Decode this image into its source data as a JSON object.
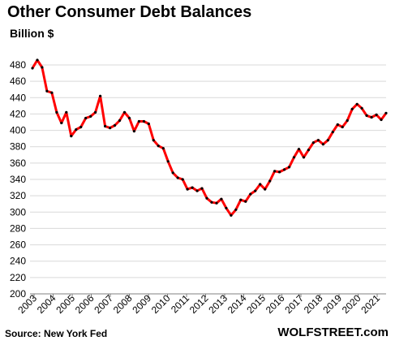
{
  "chart_data": {
    "type": "line",
    "title": "Other Consumer Debt Balances",
    "subtitle": "Billion $",
    "xlabel": "",
    "ylabel": "",
    "source": "Source: New York Fed",
    "brand": "WOLFSTREET.com",
    "ylim": [
      200,
      480
    ],
    "y_ticks": [
      200,
      220,
      240,
      260,
      280,
      300,
      320,
      340,
      360,
      380,
      400,
      420,
      440,
      460,
      480
    ],
    "x_tick_labels": [
      "2003",
      "2004",
      "2005",
      "2006",
      "2007",
      "2008",
      "2009",
      "2010",
      "2011",
      "2012",
      "2013",
      "2014",
      "2015",
      "2016",
      "2017",
      "2018",
      "2019",
      "2020",
      "2021"
    ],
    "grid": true,
    "legend": "none",
    "line_color": "#ff0000",
    "marker_color": "#000000",
    "series": [
      {
        "values": [
          476,
          486,
          477,
          448,
          446,
          422,
          409,
          422,
          393,
          401,
          404,
          415,
          417,
          422,
          442,
          405,
          403,
          406,
          412,
          422,
          415,
          399,
          411,
          411,
          408,
          388,
          381,
          378,
          362,
          348,
          342,
          340,
          328,
          330,
          326,
          329,
          317,
          312,
          311,
          316,
          305,
          296,
          303,
          315,
          313,
          322,
          326,
          334,
          328,
          338,
          350,
          349,
          352,
          355,
          367,
          377,
          367,
          376,
          385,
          388,
          383,
          388,
          398,
          407,
          404,
          412,
          426,
          432,
          427,
          418,
          416,
          419,
          413,
          421
        ]
      }
    ]
  }
}
